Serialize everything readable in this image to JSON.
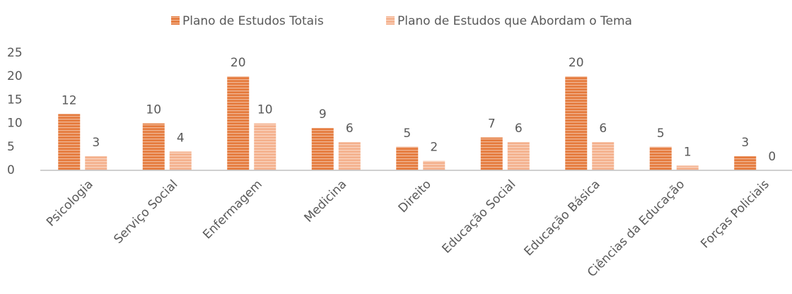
{
  "chart_data": {
    "type": "bar",
    "categories": [
      "Psicologia",
      "Serviço Social",
      "Enfermagem",
      "Medicina",
      "Direito",
      "Educação Social",
      "Educação Básica",
      "Ciências da Educação",
      "Forças Policiais"
    ],
    "series": [
      {
        "name": "Plano de Estudos Totais",
        "color": "#e57a3c",
        "values": [
          12,
          10,
          20,
          9,
          5,
          7,
          20,
          5,
          3
        ]
      },
      {
        "name": "Plano de Estudos que Abordam o Tema",
        "color": "#f4b08c",
        "values": [
          3,
          4,
          10,
          6,
          2,
          6,
          6,
          1,
          0
        ]
      }
    ],
    "ylim": [
      0,
      25
    ],
    "yticks": [
      0,
      5,
      10,
      15,
      20,
      25
    ]
  }
}
